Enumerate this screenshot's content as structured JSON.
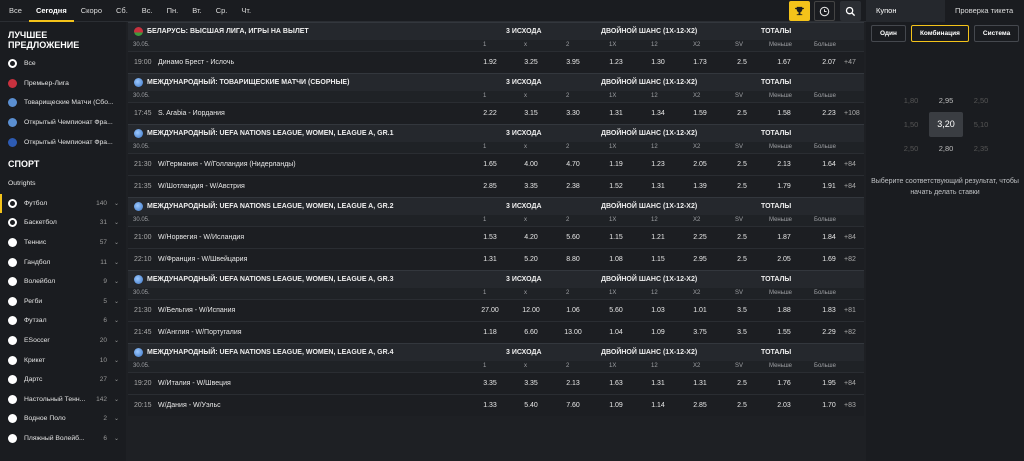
{
  "topbar": {
    "tabs": [
      "Все",
      "Сегодня",
      "Скоро",
      "Сб.",
      "Вс.",
      "Пн.",
      "Вт.",
      "Ср.",
      "Чт."
    ],
    "active_tab": "Сегодня"
  },
  "right_panel": {
    "tabs": [
      "Купон",
      "Проверка тикета"
    ],
    "modes": [
      "Один",
      "Комбинация",
      "Система"
    ],
    "active_mode": "Комбинация",
    "odds_grid": [
      "1,80",
      "2,95",
      "2,50",
      "1,50",
      "3,20",
      "5,10",
      "2,50",
      "2,80",
      "2,35"
    ],
    "hint": "Выберите соответствующий результат, чтобы начать делать ставки"
  },
  "sidebar": {
    "best_offer_title_1": "ЛУЧШЕЕ",
    "best_offer_title_2": "ПРЕДЛОЖЕНИЕ",
    "best_offer": [
      {
        "label": "Все",
        "icon": "soccer-ball-icon"
      },
      {
        "label": "Премьер-Лига",
        "icon": "belarus-flag-icon"
      },
      {
        "label": "Товарищеские Матчи (Сбо...",
        "icon": "globe-icon"
      },
      {
        "label": "Открытый Чемпионат Фра...",
        "icon": "globe-icon"
      },
      {
        "label": "Открытый Чемпионат Фра...",
        "icon": "france-flag-icon"
      }
    ],
    "sport_title": "СПОРТ",
    "sports": [
      {
        "label": "Outrights",
        "count": "",
        "icon": "outrights"
      },
      {
        "label": "Футбол",
        "count": "140",
        "icon": "soccer-ball-icon"
      },
      {
        "label": "Баскетбол",
        "count": "31",
        "icon": "basketball-icon"
      },
      {
        "label": "Теннис",
        "count": "57",
        "icon": "tennis-ball-icon"
      },
      {
        "label": "Гандбол",
        "count": "11",
        "icon": "handball-icon"
      },
      {
        "label": "Волейбол",
        "count": "9",
        "icon": "volleyball-icon"
      },
      {
        "label": "Регби",
        "count": "5",
        "icon": "rugby-ball-icon"
      },
      {
        "label": "Футзал",
        "count": "6",
        "icon": "futsal-icon"
      },
      {
        "label": "ESoccer",
        "count": "20",
        "icon": "esoccer-icon"
      },
      {
        "label": "Крикет",
        "count": "10",
        "icon": "cricket-icon"
      },
      {
        "label": "Дартс",
        "count": "27",
        "icon": "darts-icon"
      },
      {
        "label": "Настольный Тенн...",
        "count": "142",
        "icon": "table-tennis-icon"
      },
      {
        "label": "Водное Поло",
        "count": "2",
        "icon": "water-polo-icon"
      },
      {
        "label": "Пляжный Волейб...",
        "count": "6",
        "icon": "beach-volleyball-icon"
      }
    ],
    "active_sport": "Футбол"
  },
  "market_headers": [
    "3 ИСХОДА",
    "ДВОЙНОЙ ШАНС (1X-12-X2)",
    "ТОТАЛЫ"
  ],
  "sub_headers": [
    "1",
    "x",
    "2",
    "1X",
    "12",
    "X2",
    "SV",
    "Меньше",
    "Больше"
  ],
  "leagues": [
    {
      "name": "БЕЛАРУСЬ: ВЫСШАЯ ЛИГА, ИГРЫ НА ВЫЛЕТ",
      "flag": "belarus",
      "date": "30.05.",
      "events": [
        {
          "time": "19:00",
          "teams": "Динамо Брест - Ислочь",
          "odds": [
            "1.92",
            "3.25",
            "3.95",
            "1.23",
            "1.30",
            "1.73",
            "2.5",
            "1.67",
            "2.07"
          ],
          "more": "+47"
        }
      ]
    },
    {
      "name": "МЕЖДУНАРОДНЫЙ: ТОВАРИЩЕСКИЕ МАТЧИ (СБОРНЫЕ)",
      "flag": "globe",
      "date": "30.05.",
      "events": [
        {
          "time": "17:45",
          "teams": "S. Arabia - Иордания",
          "odds": [
            "2.22",
            "3.15",
            "3.30",
            "1.31",
            "1.34",
            "1.59",
            "2.5",
            "1.58",
            "2.23"
          ],
          "more": "+108"
        }
      ]
    },
    {
      "name": "МЕЖДУНАРОДНЫЙ: UEFA NATIONS LEAGUE, WOMEN, LEAGUE A, GR.1",
      "flag": "globe",
      "date": "30.05.",
      "events": [
        {
          "time": "21:30",
          "teams": "W/Германия - W/Голландия (Нидерланды)",
          "odds": [
            "1.65",
            "4.00",
            "4.70",
            "1.19",
            "1.23",
            "2.05",
            "2.5",
            "2.13",
            "1.64"
          ],
          "more": "+84"
        },
        {
          "time": "21:35",
          "teams": "W/Шотландия - W/Австрия",
          "odds": [
            "2.85",
            "3.35",
            "2.38",
            "1.52",
            "1.31",
            "1.39",
            "2.5",
            "1.79",
            "1.91"
          ],
          "more": "+84"
        }
      ]
    },
    {
      "name": "МЕЖДУНАРОДНЫЙ: UEFA NATIONS LEAGUE, WOMEN, LEAGUE A, GR.2",
      "flag": "globe",
      "date": "30.05.",
      "events": [
        {
          "time": "21:00",
          "teams": "W/Норвегия - W/Исландия",
          "odds": [
            "1.53",
            "4.20",
            "5.60",
            "1.15",
            "1.21",
            "2.25",
            "2.5",
            "1.87",
            "1.84"
          ],
          "more": "+84"
        },
        {
          "time": "22:10",
          "teams": "W/Франция - W/Швейцария",
          "odds": [
            "1.31",
            "5.20",
            "8.80",
            "1.08",
            "1.15",
            "2.95",
            "2.5",
            "2.05",
            "1.69"
          ],
          "more": "+82"
        }
      ]
    },
    {
      "name": "МЕЖДУНАРОДНЫЙ: UEFA NATIONS LEAGUE, WOMEN, LEAGUE A, GR.3",
      "flag": "globe",
      "date": "30.05.",
      "events": [
        {
          "time": "21:30",
          "teams": "W/Бельгия - W/Испания",
          "odds": [
            "27.00",
            "12.00",
            "1.06",
            "5.60",
            "1.03",
            "1.01",
            "3.5",
            "1.88",
            "1.83"
          ],
          "more": "+81"
        },
        {
          "time": "21:45",
          "teams": "W/Англия - W/Португалия",
          "odds": [
            "1.18",
            "6.60",
            "13.00",
            "1.04",
            "1.09",
            "3.75",
            "3.5",
            "1.55",
            "2.29"
          ],
          "more": "+82"
        }
      ]
    },
    {
      "name": "МЕЖДУНАРОДНЫЙ: UEFA NATIONS LEAGUE, WOMEN, LEAGUE A, GR.4",
      "flag": "globe",
      "date": "30.05.",
      "events": [
        {
          "time": "19:20",
          "teams": "W/Италия - W/Швеция",
          "odds": [
            "3.35",
            "3.35",
            "2.13",
            "1.63",
            "1.31",
            "1.31",
            "2.5",
            "1.76",
            "1.95"
          ],
          "more": "+84"
        },
        {
          "time": "20:15",
          "teams": "W/Дания - W/Уэльс",
          "odds": [
            "1.33",
            "5.40",
            "7.60",
            "1.09",
            "1.14",
            "2.85",
            "2.5",
            "2.03",
            "1.70"
          ],
          "more": "+83"
        }
      ]
    }
  ],
  "colors": {
    "accent": "#f4c31a",
    "background": "#1e2024",
    "panel": "#1a1c20"
  }
}
